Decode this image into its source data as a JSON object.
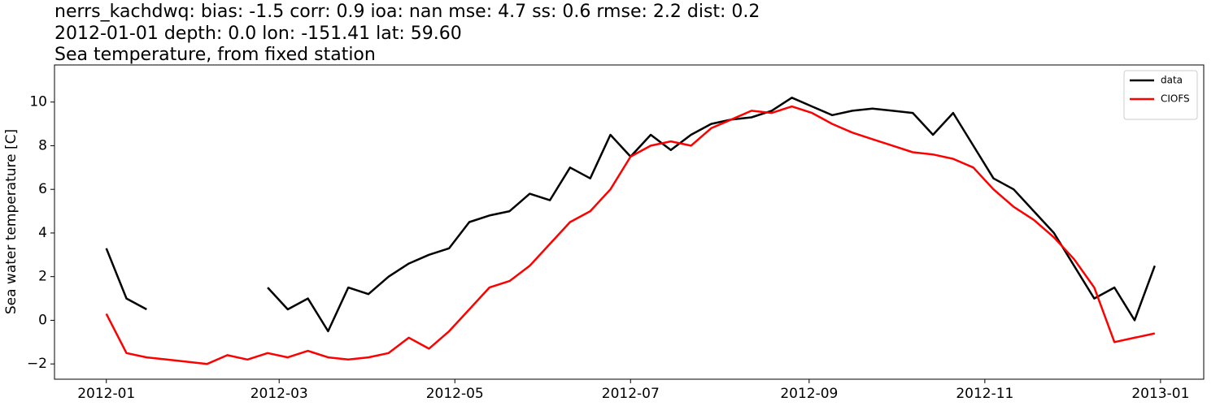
{
  "chart_data": {
    "type": "line",
    "title": "nerrs_kachdwq: bias: -1.5  corr: 0.9  ioa: nan  mse: 4.7  ss: 0.6  rmse: 2.2  dist: 0.2",
    "subtitle": "2012-01-01 depth: 0.0 lon: -151.41 lat: 59.60",
    "subtitle2": "Sea temperature, from fixed station",
    "y_label": "Sea water temperature [C]",
    "legend": "upper right",
    "x": [
      "2012-01-01",
      "2012-01-08",
      "2012-01-15",
      "2012-01-22",
      "2012-01-29",
      "2012-02-05",
      "2012-02-12",
      "2012-02-19",
      "2012-02-26",
      "2012-03-04",
      "2012-03-11",
      "2012-03-18",
      "2012-03-25",
      "2012-04-01",
      "2012-04-08",
      "2012-04-15",
      "2012-04-22",
      "2012-04-29",
      "2012-05-06",
      "2012-05-13",
      "2012-05-20",
      "2012-05-27",
      "2012-06-03",
      "2012-06-10",
      "2012-06-17",
      "2012-06-24",
      "2012-07-01",
      "2012-07-08",
      "2012-07-15",
      "2012-07-22",
      "2012-07-29",
      "2012-08-05",
      "2012-08-12",
      "2012-08-19",
      "2012-08-26",
      "2012-09-02",
      "2012-09-09",
      "2012-09-16",
      "2012-09-23",
      "2012-09-30",
      "2012-10-07",
      "2012-10-14",
      "2012-10-21",
      "2012-10-28",
      "2012-11-04",
      "2012-11-11",
      "2012-11-18",
      "2012-11-25",
      "2012-12-02",
      "2012-12-09",
      "2012-12-16",
      "2012-12-23",
      "2012-12-30"
    ],
    "series": [
      {
        "name": "data",
        "color": "#000000",
        "values": [
          3.3,
          1.0,
          0.5,
          null,
          null,
          null,
          null,
          null,
          1.5,
          0.5,
          1.0,
          -0.5,
          1.5,
          1.2,
          2.0,
          2.6,
          3.0,
          3.3,
          4.5,
          4.8,
          5.0,
          5.8,
          5.5,
          7.0,
          6.5,
          8.5,
          7.5,
          8.5,
          7.8,
          8.5,
          9.0,
          9.2,
          9.3,
          9.6,
          10.2,
          9.8,
          9.4,
          9.6,
          9.7,
          9.6,
          9.5,
          8.5,
          9.5,
          8.0,
          6.5,
          6.0,
          5.0,
          4.0,
          2.5,
          1.0,
          1.5,
          0.0,
          2.5
        ]
      },
      {
        "name": "CIOFS",
        "color": "#ff0000",
        "values": [
          0.3,
          -1.5,
          -1.7,
          -1.8,
          -1.9,
          -2.0,
          -1.6,
          -1.8,
          -1.5,
          -1.7,
          -1.4,
          -1.7,
          -1.8,
          -1.7,
          -1.5,
          -0.8,
          -1.3,
          -0.5,
          0.5,
          1.5,
          1.8,
          2.5,
          3.5,
          4.5,
          5.0,
          6.0,
          7.5,
          8.0,
          8.2,
          8.0,
          8.8,
          9.2,
          9.6,
          9.5,
          9.8,
          9.5,
          9.0,
          8.6,
          8.3,
          8.0,
          7.7,
          7.6,
          7.4,
          7.0,
          6.0,
          5.2,
          4.6,
          3.8,
          2.8,
          1.5,
          -1.0,
          -0.8,
          -0.6
        ]
      }
    ],
    "xlim": [
      "2011-12-14",
      "2013-01-16"
    ],
    "xticks": [
      {
        "value": "2012-01-01",
        "label": "2012-01"
      },
      {
        "value": "2012-03-01",
        "label": "2012-03"
      },
      {
        "value": "2012-05-01",
        "label": "2012-05"
      },
      {
        "value": "2012-07-01",
        "label": "2012-07"
      },
      {
        "value": "2012-09-01",
        "label": "2012-09"
      },
      {
        "value": "2012-11-01",
        "label": "2012-11"
      },
      {
        "value": "2013-01-01",
        "label": "2013-01"
      }
    ],
    "ylim": [
      -2.7,
      11.7
    ],
    "yticks": [
      {
        "value": -2,
        "label": "−2"
      },
      0,
      2,
      4,
      6,
      8,
      10
    ]
  }
}
